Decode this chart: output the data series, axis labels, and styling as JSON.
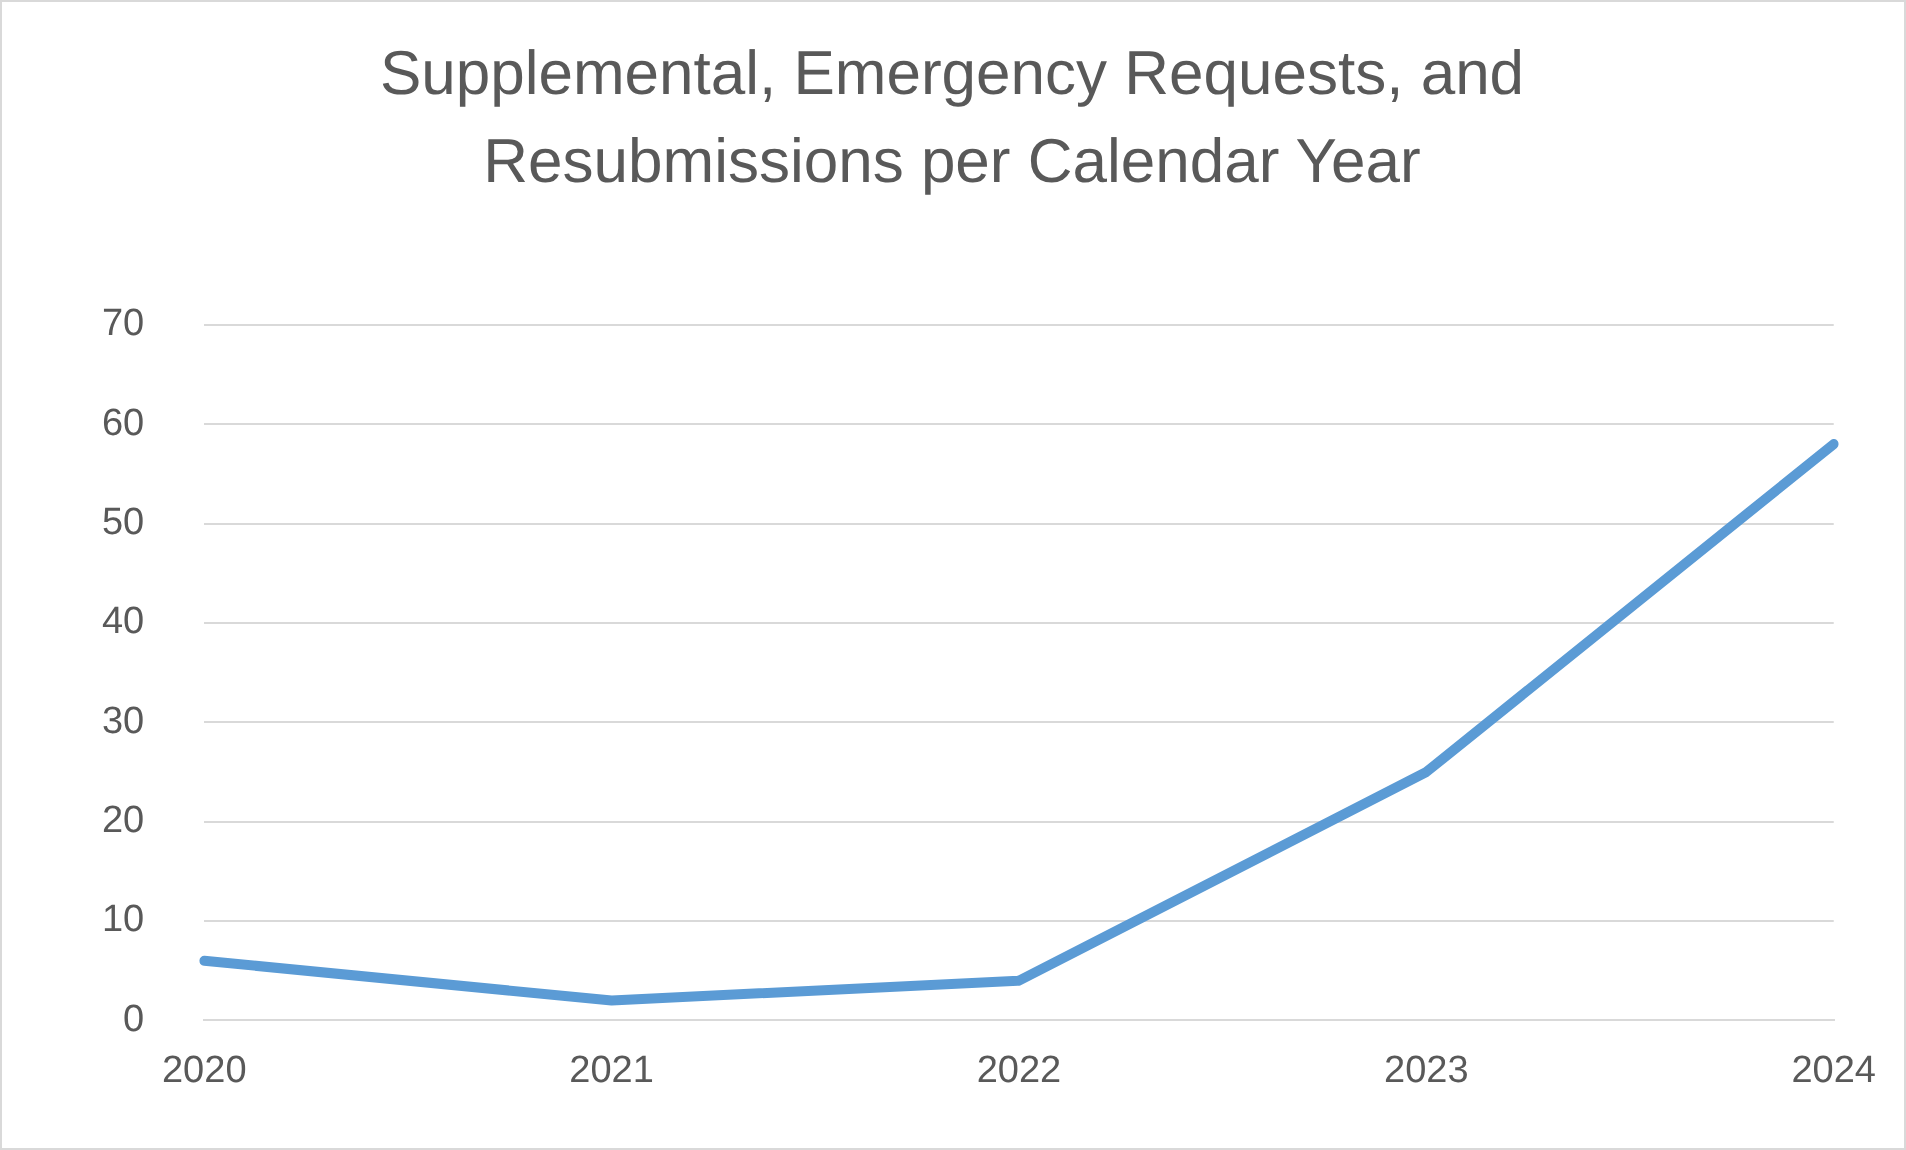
{
  "chart_data": {
    "type": "line",
    "title": "Supplemental, Emergency Requests, and Resubmissions per Calendar Year",
    "categories": [
      "2020",
      "2021",
      "2022",
      "2023",
      "2024"
    ],
    "series": [
      {
        "color": "#5b9bd5",
        "values": [
          6,
          2,
          4,
          25,
          58
        ]
      }
    ],
    "ylim": [
      0,
      70
    ],
    "yticks": [
      0,
      10,
      20,
      30,
      40,
      50,
      60,
      70
    ],
    "grid": "y",
    "legend": false,
    "marker": "none",
    "line_style": "solid"
  }
}
